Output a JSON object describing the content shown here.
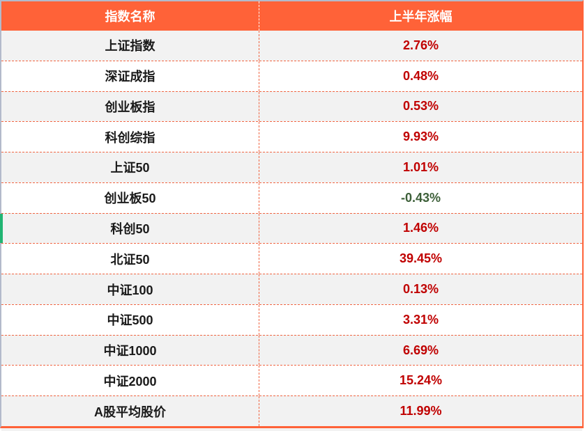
{
  "table": {
    "columns": [
      {
        "label": "指数名称"
      },
      {
        "label": "上半年涨幅"
      }
    ],
    "rows": [
      {
        "name": "上证指数",
        "change": "2.76%",
        "direction": "up"
      },
      {
        "name": "深证成指",
        "change": "0.48%",
        "direction": "up"
      },
      {
        "name": "创业板指",
        "change": "0.53%",
        "direction": "up"
      },
      {
        "name": "科创综指",
        "change": "9.93%",
        "direction": "up"
      },
      {
        "name": "上证50",
        "change": "1.01%",
        "direction": "up"
      },
      {
        "name": "创业板50",
        "change": "-0.43%",
        "direction": "down"
      },
      {
        "name": "科创50",
        "change": "1.46%",
        "direction": "up",
        "accent": true
      },
      {
        "name": "北证50",
        "change": "39.45%",
        "direction": "up"
      },
      {
        "name": "中证100",
        "change": "0.13%",
        "direction": "up"
      },
      {
        "name": "中证500",
        "change": "3.31%",
        "direction": "up"
      },
      {
        "name": "中证1000",
        "change": "6.69%",
        "direction": "up"
      },
      {
        "name": "中证2000",
        "change": "15.24%",
        "direction": "up"
      },
      {
        "name": "A股平均股价",
        "change": "11.99%",
        "direction": "up"
      }
    ],
    "colors": {
      "header_bg": "#FF6238",
      "header_text": "#FFFFFF",
      "row_alt_bg": "#F2F2F2",
      "row_bg": "#FFFFFF",
      "up_text": "#C00000",
      "down_text": "#3C5F38",
      "dashed_border": "#F06542",
      "outer_border": "#B3BACB",
      "accent_green": "#22B573"
    }
  },
  "chart_data": {
    "type": "table",
    "title": "上半年涨幅",
    "categories": [
      "上证指数",
      "深证成指",
      "创业板指",
      "科创综指",
      "上证50",
      "创业板50",
      "科创50",
      "北证50",
      "中证100",
      "中证500",
      "中证1000",
      "中证2000",
      "A股平均股价"
    ],
    "values": [
      2.76,
      0.48,
      0.53,
      9.93,
      1.01,
      -0.43,
      1.46,
      39.45,
      0.13,
      3.31,
      6.69,
      15.24,
      11.99
    ]
  }
}
